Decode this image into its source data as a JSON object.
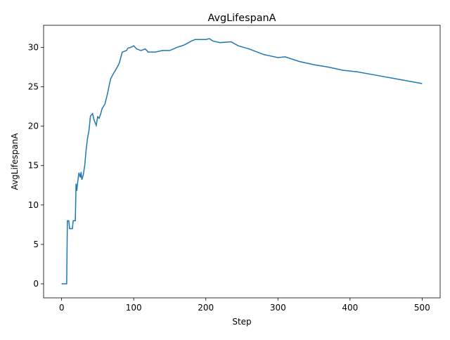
{
  "chart_data": {
    "type": "line",
    "title": "AvgLifespanA",
    "x_label": "Step",
    "y_label": "AvgLifespanA",
    "x": [
      0,
      7,
      8,
      10,
      11,
      15,
      16,
      19,
      20,
      21,
      22,
      24,
      26,
      27,
      28,
      30,
      32,
      34,
      36,
      38,
      40,
      43,
      45,
      48,
      50,
      52,
      54,
      56,
      60,
      62,
      64,
      66,
      68,
      72,
      76,
      80,
      84,
      90,
      92,
      96,
      100,
      104,
      110,
      116,
      120,
      130,
      140,
      150,
      160,
      170,
      180,
      185,
      200,
      205,
      210,
      220,
      235,
      245,
      260,
      280,
      300,
      310,
      330,
      350,
      370,
      390,
      410,
      440,
      470,
      500
    ],
    "series": [
      {
        "name": "AvgLifespanA",
        "color": "#1f77b4",
        "values": [
          0,
          0,
          8,
          8,
          7,
          7,
          8,
          8,
          12.7,
          11.8,
          12.7,
          14.1,
          13.5,
          14.2,
          13.2,
          13.8,
          15,
          17,
          18.5,
          19.5,
          21.3,
          21.6,
          20.8,
          20.1,
          21.2,
          21,
          21.5,
          22.2,
          22.8,
          23.5,
          24.3,
          25.2,
          26,
          26.7,
          27.3,
          28,
          29.4,
          29.6,
          29.9,
          30,
          30.2,
          29.8,
          29.6,
          29.8,
          29.4,
          29.4,
          29.6,
          29.6,
          30,
          30.3,
          30.8,
          31,
          31,
          31.1,
          30.8,
          30.6,
          30.7,
          30.2,
          29.8,
          29.1,
          28.7,
          28.8,
          28.2,
          27.8,
          27.5,
          27.1,
          26.9,
          26.4,
          25.9,
          25.4
        ]
      }
    ],
    "xlim": [
      -25,
      525
    ],
    "ylim": [
      -1.78,
      32.8
    ],
    "xticks": [
      0,
      100,
      200,
      300,
      400,
      500
    ],
    "yticks": [
      0,
      5,
      10,
      15,
      20,
      25,
      30
    ]
  }
}
